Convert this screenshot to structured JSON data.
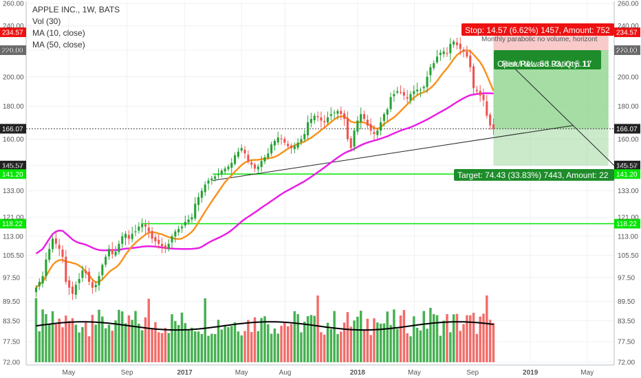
{
  "legend": {
    "title": "APPLE INC., 1W, BATS",
    "vol": "Vol (30)",
    "ma10": "MA (10, close)",
    "ma50": "MA (50, close)"
  },
  "colors": {
    "up": "#26a234",
    "down": "#ef5350",
    "ma10": "#f7931e",
    "ma50": "#e91ee6",
    "volume_ma": "#000000",
    "support": "#00e600",
    "stop": "#ee1111",
    "target_zone": "#9fd89f"
  },
  "annotations": {
    "stop": "Stop: 14.57 (6.62%) 1457, Amount: 752",
    "note": "Monthly parabolic no volume, horizont",
    "open_pl": "Open P&L: 53.93, Qty: 17",
    "rr": "Risk/Reward Ratio: 5.11",
    "target": "Target: 74.43 (33.83%) 7443, Amount: 22"
  },
  "price_tags": [
    {
      "label": "234.57",
      "kind": "stop"
    },
    {
      "label": "220.00",
      "kind": "gray"
    },
    {
      "label": "166.07",
      "kind": "dark"
    },
    {
      "label": "145.57",
      "kind": "dark"
    },
    {
      "label": "141.20",
      "kind": "green"
    },
    {
      "label": "118.22",
      "kind": "green"
    }
  ],
  "chart_data": {
    "type": "candlestick",
    "title": "APPLE INC., 1W, BATS",
    "y_scale": "log",
    "ylim": [
      72,
      262
    ],
    "y_ticks": [
      260.0,
      240.0,
      220.0,
      200.0,
      180.0,
      160.0,
      145.57,
      133.0,
      121.0,
      113.0,
      105.5,
      97.5,
      89.5,
      83.5,
      77.5,
      72.0
    ],
    "x_tick_labels": [
      "May",
      "Sep",
      "2017",
      "May",
      "Aug",
      "2018",
      "May",
      "Sep",
      "2019",
      "May"
    ],
    "start_week": "2016-02-22",
    "weekly_closes": [
      94,
      96,
      98,
      104,
      108,
      112,
      110,
      108,
      105,
      96,
      94,
      92,
      95,
      97,
      100,
      99,
      96,
      94,
      95,
      98,
      102,
      105,
      108,
      106,
      107,
      110,
      113,
      114,
      112,
      114,
      115,
      117,
      118,
      117,
      115,
      112,
      111,
      110,
      109,
      108,
      110,
      113,
      115,
      116,
      117,
      119,
      120,
      121,
      127,
      130,
      133,
      136,
      138,
      139,
      140,
      141,
      143,
      144,
      145,
      147,
      151,
      153,
      155,
      152,
      148,
      146,
      144,
      145,
      148,
      150,
      152,
      157,
      159,
      161,
      160,
      158,
      156,
      155,
      156,
      158,
      160,
      163,
      170,
      172,
      174,
      173,
      171,
      170,
      173,
      175,
      176,
      177,
      175,
      172,
      160,
      155,
      165,
      171,
      175,
      172,
      168,
      165,
      163,
      165,
      170,
      175,
      178,
      186,
      188,
      190,
      189,
      187,
      185,
      188,
      190,
      191,
      191,
      193,
      200,
      207,
      210,
      215,
      218,
      219,
      217,
      225,
      227,
      224,
      221,
      219,
      215,
      207,
      192,
      190,
      187,
      184,
      174,
      168,
      166
    ],
    "volume_ma_level": 82,
    "ma10_label": "MA (10, close)",
    "ma50_label": "MA (50, close)",
    "horizontal_lines": [
      {
        "value": 141.2,
        "from": "2017-03"
      },
      {
        "value": 118.22,
        "from": "2016-10"
      }
    ],
    "trendline": {
      "from": {
        "date": "2017-03",
        "value": 138
      },
      "to": {
        "date": "2019-04",
        "value": 168
      }
    },
    "stop_level": 234.57,
    "entry_level": 220.0,
    "target_level": 145.57,
    "current_price": 166.07,
    "risk_reward": 5.11
  }
}
